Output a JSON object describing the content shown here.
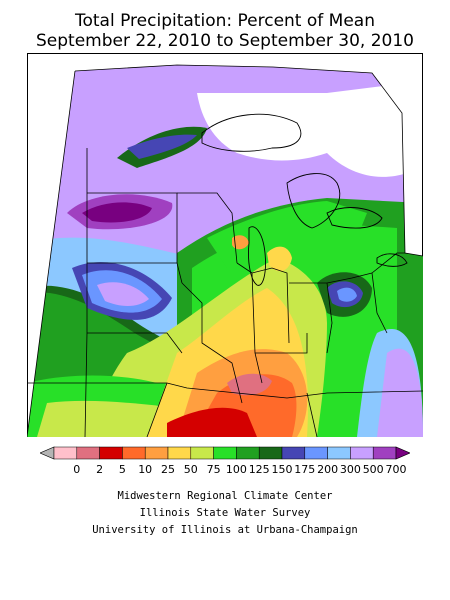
{
  "title": {
    "line1": "Total Precipitation: Percent of Mean",
    "line2": "September 22, 2010 to September 30, 2010"
  },
  "legend": {
    "labels": [
      "0",
      "2",
      "5",
      "10",
      "25",
      "50",
      "75",
      "100",
      "125",
      "150",
      "175",
      "200",
      "300",
      "500",
      "700"
    ],
    "colors": [
      "#b4b4b4",
      "#ffc0cb",
      "#e07080",
      "#d40000",
      "#ff6a2a",
      "#ff9f40",
      "#ffd84a",
      "#c8e84a",
      "#28e028",
      "#20a020",
      "#186818",
      "#4646b4",
      "#6a96ff",
      "#8cc8ff",
      "#c8a0ff",
      "#a040c0",
      "#780080"
    ]
  },
  "credits": {
    "line1": "Midwestern Regional Climate Center",
    "line2": "Illinois State Water Survey",
    "line3": "University of Illinois at Urbana-Champaign"
  }
}
